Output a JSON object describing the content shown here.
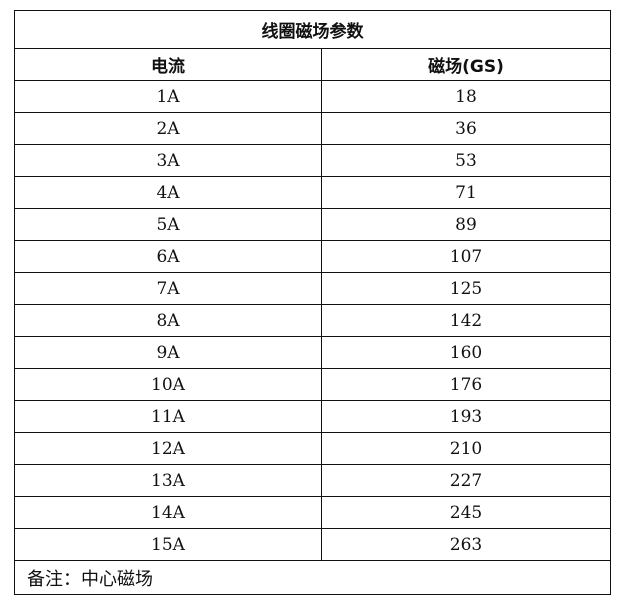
{
  "title": "线圈磁场参数",
  "headers": {
    "current": "电流",
    "field": "磁场(GS)"
  },
  "rows": [
    {
      "current": "1A",
      "field": "18"
    },
    {
      "current": "2A",
      "field": "36"
    },
    {
      "current": "3A",
      "field": "53"
    },
    {
      "current": "4A",
      "field": "71"
    },
    {
      "current": "5A",
      "field": "89"
    },
    {
      "current": "6A",
      "field": "107"
    },
    {
      "current": "7A",
      "field": "125"
    },
    {
      "current": "8A",
      "field": "142"
    },
    {
      "current": "9A",
      "field": "160"
    },
    {
      "current": "10A",
      "field": "176"
    },
    {
      "current": "11A",
      "field": "193"
    },
    {
      "current": "12A",
      "field": "210"
    },
    {
      "current": "13A",
      "field": "227"
    },
    {
      "current": "14A",
      "field": "245"
    },
    {
      "current": "15A",
      "field": "263"
    }
  ],
  "note": "备注：中心磁场"
}
